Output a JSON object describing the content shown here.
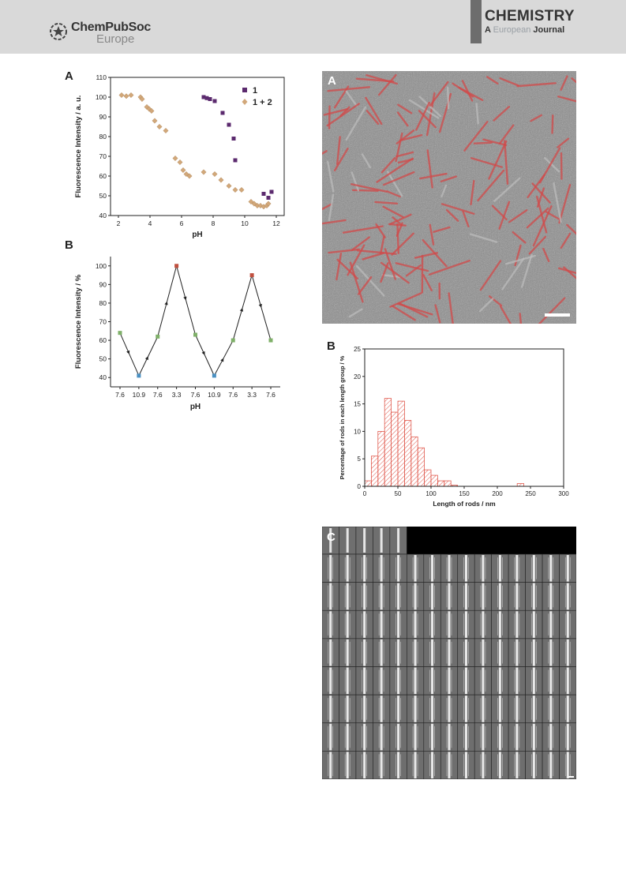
{
  "header": {
    "publisher_name": "ChemPubSoc",
    "publisher_sub": "Europe",
    "journal_title": "CHEMISTRY",
    "journal_sub_a": "A",
    "journal_sub_eu": "European",
    "journal_sub_j": "Journal"
  },
  "panels": {
    "left_a": "A",
    "left_b": "B",
    "right_a": "A",
    "right_b": "B",
    "right_c": "C"
  },
  "chart_data": [
    {
      "type": "scatter",
      "ylabel": "Fluorescence Intensity / a. u.",
      "xlabel": "pH",
      "xlim": [
        1.5,
        12.5
      ],
      "ylim": [
        40,
        110
      ],
      "xticks": [
        2,
        4,
        6,
        8,
        10,
        12
      ],
      "yticks": [
        40,
        50,
        60,
        70,
        80,
        90,
        100,
        110
      ],
      "series": [
        {
          "name": "1",
          "color": "#5b2a6e",
          "marker": "square",
          "x": [
            7.4,
            7.6,
            7.8,
            8.1,
            8.6,
            9.0,
            9.3,
            9.4,
            11.2,
            11.5,
            11.7
          ],
          "y": [
            100,
            99.5,
            99,
            98,
            92,
            86,
            79,
            68,
            51,
            49,
            52
          ]
        },
        {
          "name": "1 + 2",
          "color": "#d2a87a",
          "marker": "diamond",
          "x": [
            2.2,
            2.5,
            2.8,
            3.4,
            3.5,
            3.8,
            3.95,
            4.1,
            4.3,
            4.6,
            5.0,
            5.6,
            5.9,
            6.1,
            6.3,
            6.5,
            7.4,
            8.1,
            8.5,
            9.0,
            9.4,
            9.8,
            10.4,
            10.6,
            10.8,
            11.0,
            11.2,
            11.4,
            11.5
          ],
          "y": [
            101,
            100.5,
            101,
            100,
            99,
            95,
            94,
            93,
            88,
            85,
            83,
            69,
            67,
            63,
            61,
            60,
            62,
            61,
            58,
            55,
            53,
            53,
            47,
            46,
            45,
            45,
            44.5,
            45,
            46
          ]
        }
      ]
    },
    {
      "type": "line",
      "ylabel": "Fluorescence Intensity / %",
      "xlabel": "pH",
      "categories": [
        "7.6",
        "10.9",
        "7.6",
        "3.3",
        "7.6",
        "10.9",
        "7.6",
        "3.3",
        "7.6"
      ],
      "values": [
        64,
        41,
        62,
        100,
        63,
        41,
        60,
        95,
        60
      ],
      "point_colors": [
        "#7fb069",
        "#4a90c2",
        "#7fb069",
        "#c0503f",
        "#7fb069",
        "#4a90c2",
        "#7fb069",
        "#c0503f",
        "#7fb069"
      ],
      "ylim": [
        35,
        105
      ],
      "yticks": [
        40,
        50,
        60,
        70,
        80,
        90,
        100
      ]
    },
    {
      "type": "bar",
      "ylabel": "Percentage of rods in each length group / %",
      "xlabel": "Length of rods  / nm",
      "bin_width": 10,
      "bin_starts": [
        0,
        10,
        20,
        30,
        40,
        50,
        60,
        70,
        80,
        90,
        100,
        110,
        120,
        130,
        230
      ],
      "values": [
        1.0,
        5.5,
        10.0,
        16.0,
        13.5,
        15.5,
        12.0,
        9.0,
        7.0,
        3.0,
        2.0,
        1.0,
        1.0,
        0.2,
        0.5
      ],
      "xlim": [
        0,
        300
      ],
      "ylim": [
        0,
        25
      ],
      "xticks": [
        0,
        50,
        100,
        150,
        200,
        250,
        300
      ],
      "yticks": [
        0,
        5,
        10,
        15,
        20,
        25
      ],
      "color": "#e05a4e"
    }
  ]
}
